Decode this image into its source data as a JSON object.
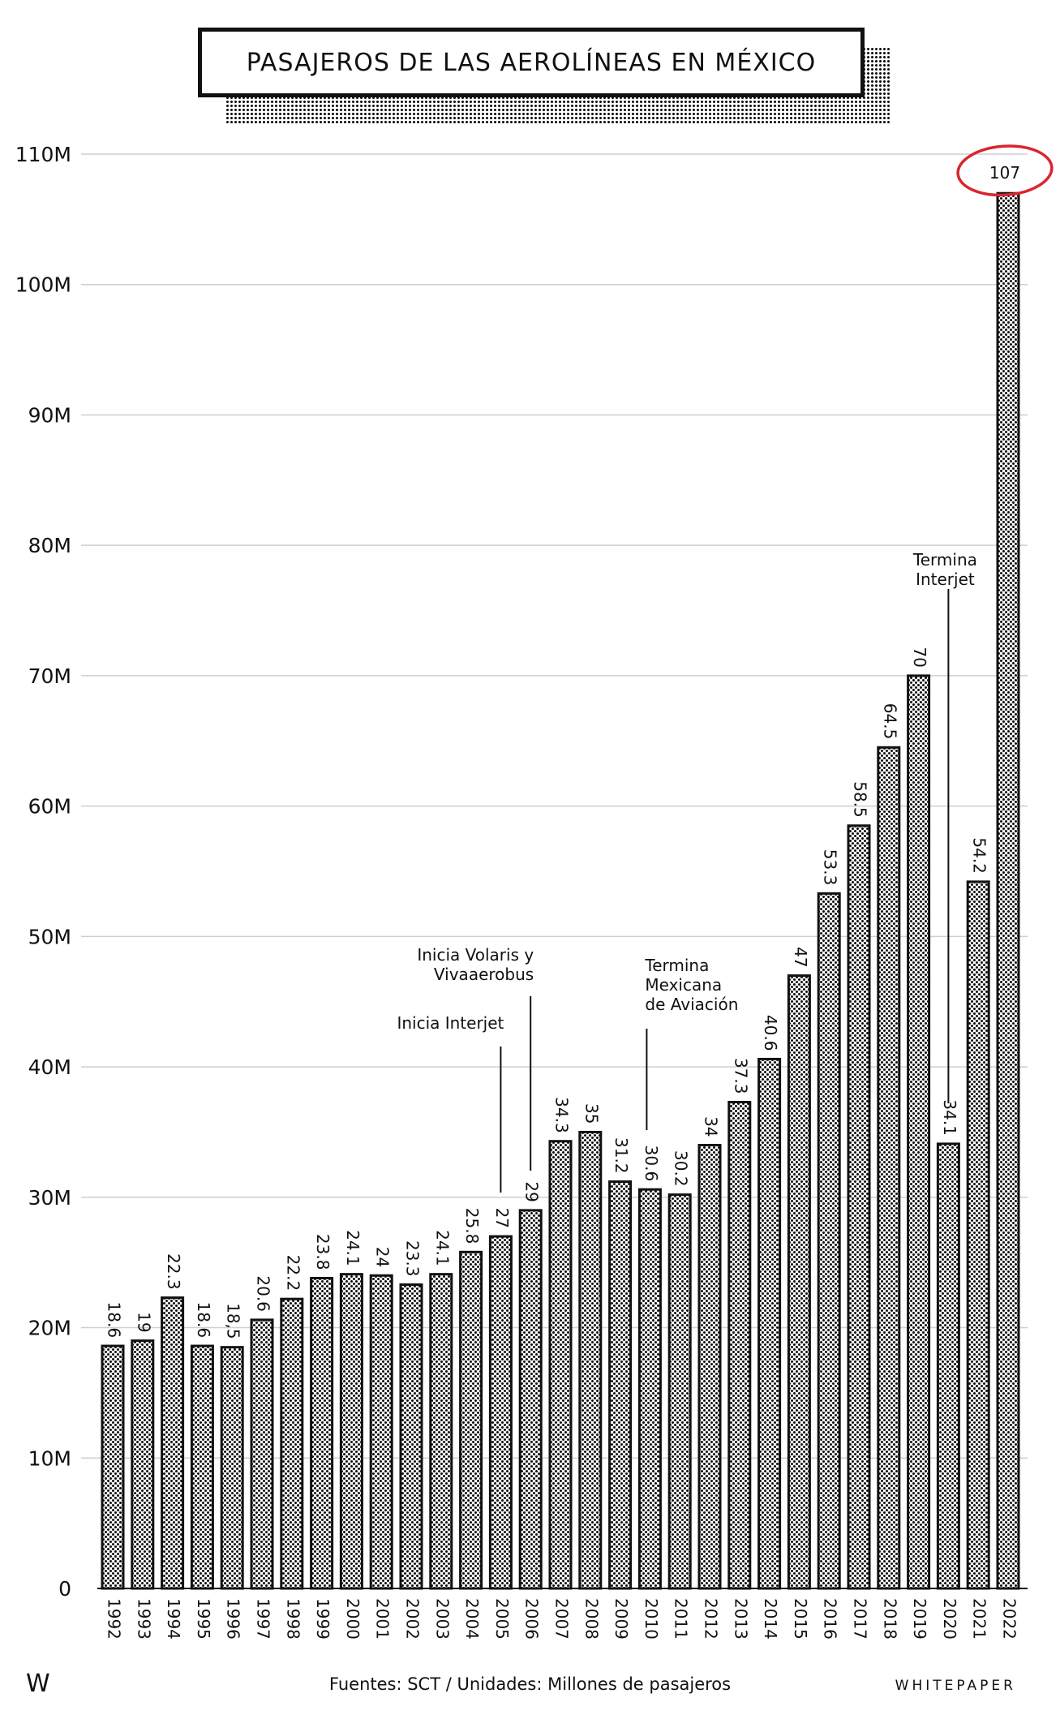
{
  "chart_data": {
    "type": "bar",
    "title": "PASAJEROS DE LAS AEROLÍNEAS EN MÉXICO",
    "xlabel": "",
    "ylabel": "",
    "ylim": [
      0,
      110
    ],
    "ytick_labels": [
      "0",
      "10M",
      "20M",
      "30M",
      "40M",
      "50M",
      "60M",
      "70M",
      "80M",
      "90M",
      "100M",
      "110M"
    ],
    "ytick_values": [
      0,
      10,
      20,
      30,
      40,
      50,
      60,
      70,
      80,
      90,
      100,
      110
    ],
    "grid": true,
    "categories": [
      "1992",
      "1993",
      "1994",
      "1995",
      "1996",
      "1997",
      "1998",
      "1999",
      "2000",
      "2001",
      "2002",
      "2003",
      "2004",
      "2005",
      "2006",
      "2007",
      "2008",
      "2009",
      "2010",
      "2011",
      "2012",
      "2013",
      "2014",
      "2015",
      "2016",
      "2017",
      "2018",
      "2019",
      "2020",
      "2021",
      "2022"
    ],
    "values": [
      18.6,
      19,
      22.3,
      18.6,
      18.5,
      20.6,
      22.2,
      23.8,
      24.1,
      24,
      23.3,
      24.1,
      25.8,
      27,
      29,
      34.3,
      35,
      31.2,
      30.6,
      30.2,
      34,
      37.3,
      40.6,
      47,
      53.3,
      58.5,
      64.5,
      70,
      34.1,
      54.2,
      107
    ],
    "value_labels": [
      "18.6",
      "19",
      "22.3",
      "18.6",
      "18,5",
      "20.6",
      "22.2",
      "23.8",
      "24.1",
      "24",
      "23.3",
      "24.1",
      "25.8",
      "27",
      "29",
      "34.3",
      "35",
      "31.2",
      "30.6",
      "30.2",
      "34",
      "37.3",
      "40.6",
      "47",
      "53.3",
      "58.5",
      "64.5",
      "70",
      "34.1",
      "54.2",
      "107"
    ],
    "highlight": {
      "category": "2022",
      "color": "#d9252f"
    },
    "annotations": [
      {
        "category": "2005",
        "lines": [
          "Inicia Interjet"
        ],
        "align": "end"
      },
      {
        "category": "2006",
        "lines": [
          "Inicia Volaris y",
          "Vivaaerobus"
        ],
        "align": "end"
      },
      {
        "category": "2010",
        "lines": [
          "Termina",
          "Mexicana",
          "de Aviación"
        ],
        "align": "start"
      },
      {
        "category": "2020",
        "lines": [
          "Termina",
          "Interjet"
        ],
        "align": "middle"
      }
    ]
  },
  "footer": {
    "logo": "W",
    "source": "Fuentes: SCT / Unidades: Millones de pasajeros",
    "brand": "WHITEPAPER"
  }
}
